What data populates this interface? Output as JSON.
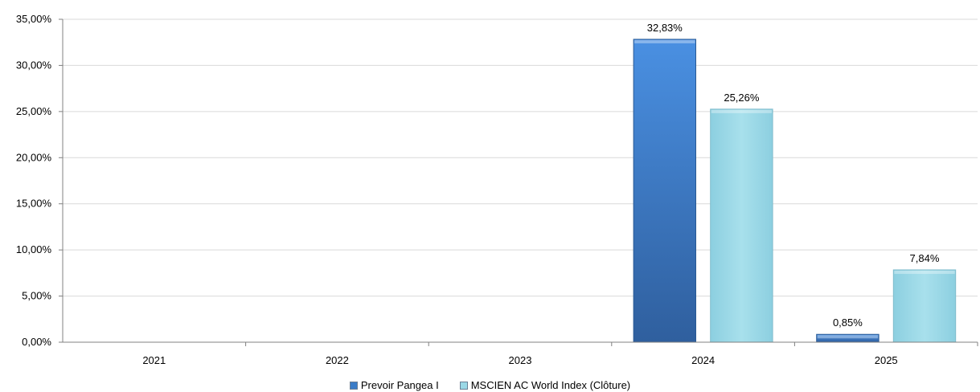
{
  "chart_data": {
    "type": "bar",
    "categories": [
      "2021",
      "2022",
      "2023",
      "2024",
      "2025"
    ],
    "series": [
      {
        "name": "Prevoir Pangea I",
        "values": [
          null,
          null,
          null,
          32.83,
          0.85
        ],
        "labels": [
          "",
          "",
          "",
          "32,83%",
          "0,85%"
        ],
        "color": "#3a7cc8"
      },
      {
        "name": "MSCIEN AC World Index (Clôture)",
        "values": [
          null,
          null,
          null,
          25.26,
          7.84
        ],
        "labels": [
          "",
          "",
          "",
          "25,26%",
          "7,84%"
        ],
        "color": "#9ad8e6"
      }
    ],
    "y_ticks": [
      "0,00%",
      "5,00%",
      "10,00%",
      "15,00%",
      "20,00%",
      "25,00%",
      "30,00%",
      "35,00%"
    ],
    "ylim": [
      0,
      35
    ],
    "title": "",
    "xlabel": "",
    "ylabel": "",
    "grid": true,
    "legend_position": "bottom"
  }
}
